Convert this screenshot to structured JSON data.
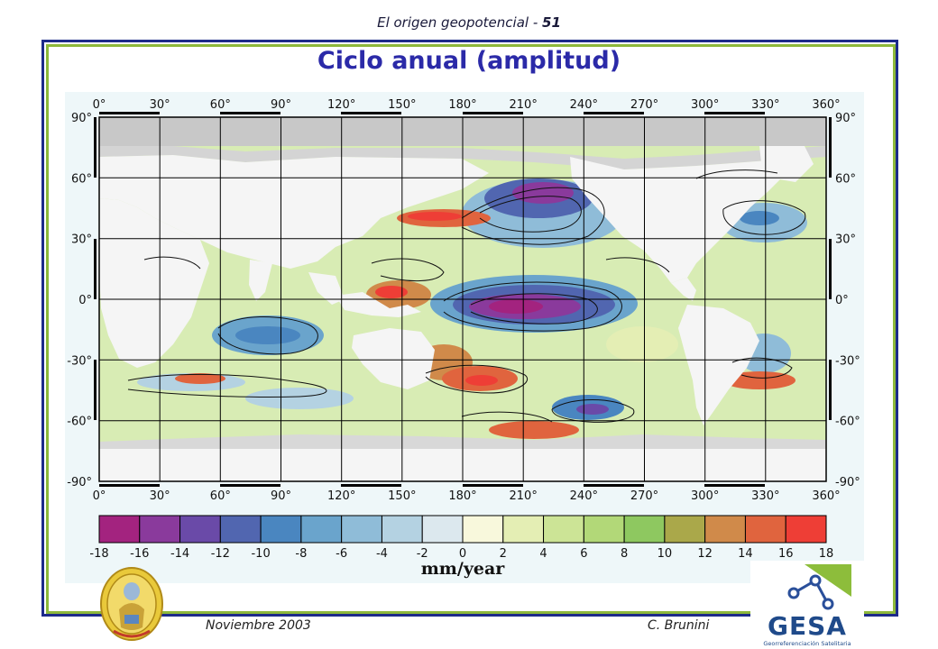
{
  "header": {
    "title": "El origen geopotencial - ",
    "page_number": "51"
  },
  "slide": {
    "title": "Ciclo anual (amplitud)"
  },
  "map": {
    "projection": "equirectangular",
    "lon_ticks": [
      "0°",
      "30°",
      "60°",
      "90°",
      "120°",
      "150°",
      "180°",
      "210°",
      "240°",
      "270°",
      "300°",
      "330°",
      "360°"
    ],
    "lat_ticks": [
      "90°",
      "60°",
      "30°",
      "0°",
      "-30°",
      "-60°",
      "-90°"
    ],
    "grid": true,
    "land_color": "#f5f5f5",
    "ice_color": "#c8c8c8"
  },
  "colorbar": {
    "unit_label": "mm/year",
    "tick_labels": [
      "-18",
      "-16",
      "-14",
      "-12",
      "-10",
      "-8",
      "-6",
      "-4",
      "-2",
      "0",
      "2",
      "4",
      "6",
      "8",
      "10",
      "12",
      "14",
      "16",
      "18"
    ],
    "colors": [
      "#a3237f",
      "#8a3a9c",
      "#6a4aa8",
      "#5166b0",
      "#4a86c0",
      "#6aa4cc",
      "#8fbcd8",
      "#b4d2e2",
      "#dce8ee",
      "#f8f8dc",
      "#e4eeb4",
      "#cce496",
      "#b2d878",
      "#8ec860",
      "#aaa84a",
      "#d08a4a",
      "#e0643e",
      "#ee3e36"
    ]
  },
  "footer": {
    "date": "Noviembre 2003",
    "author": "C. Brunini"
  },
  "logos": {
    "right_name": "GESA",
    "right_subtitle": "Georreferenciación Satelitaria"
  }
}
